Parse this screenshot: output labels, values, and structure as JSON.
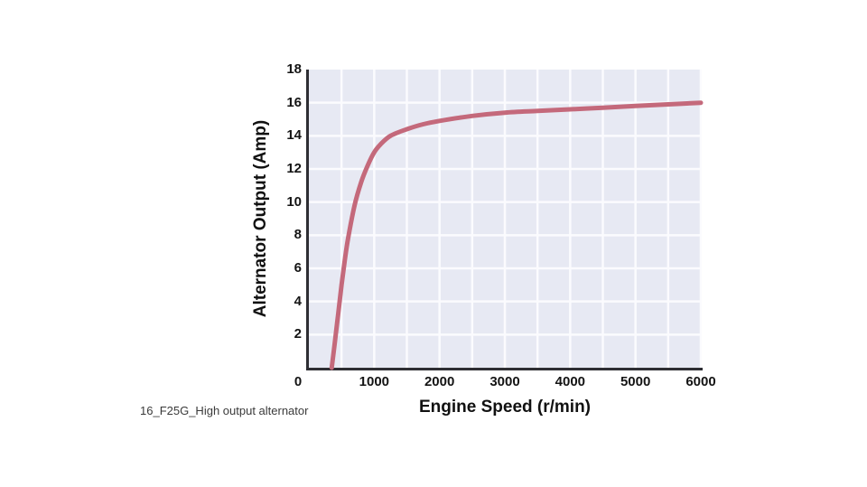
{
  "caption": "16_F25G_High output alternator",
  "chart_data": {
    "type": "line",
    "title": "",
    "xlabel": "Engine Speed (r/min)",
    "ylabel": "Alternator Output (Amp)",
    "xlim": [
      0,
      6000
    ],
    "ylim": [
      0,
      18
    ],
    "x_tick_labels": [
      0,
      1000,
      2000,
      3000,
      4000,
      5000,
      6000
    ],
    "y_tick_labels": [
      2,
      4,
      6,
      8,
      10,
      12,
      14,
      16,
      18
    ],
    "x_grid_step": 500,
    "y_grid_step": 2,
    "grid": true,
    "legend_position": "none",
    "series": [
      {
        "name": "High output alternator",
        "color": "#c4697b",
        "points": [
          [
            350,
            0
          ],
          [
            400,
            1.6
          ],
          [
            450,
            3.3
          ],
          [
            500,
            5.0
          ],
          [
            550,
            6.5
          ],
          [
            600,
            7.8
          ],
          [
            700,
            9.8
          ],
          [
            800,
            11.2
          ],
          [
            900,
            12.2
          ],
          [
            1000,
            13.0
          ],
          [
            1100,
            13.5
          ],
          [
            1250,
            14.0
          ],
          [
            1500,
            14.4
          ],
          [
            1750,
            14.7
          ],
          [
            2000,
            14.9
          ],
          [
            2500,
            15.2
          ],
          [
            3000,
            15.4
          ],
          [
            3500,
            15.5
          ],
          [
            4000,
            15.6
          ],
          [
            4500,
            15.7
          ],
          [
            5000,
            15.8
          ],
          [
            5500,
            15.9
          ],
          [
            6000,
            16.0
          ]
        ]
      }
    ],
    "colors": {
      "plot_background": "#e7e9f3",
      "grid": "#fbfbfe",
      "axis": "#2e2e33",
      "text": "#111111"
    }
  }
}
